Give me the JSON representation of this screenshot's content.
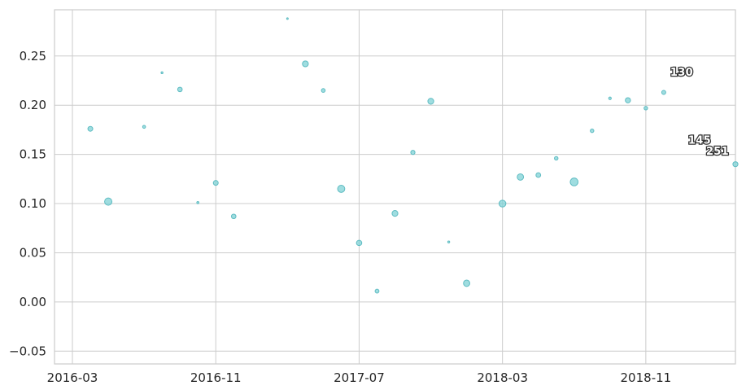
{
  "chart_data": {
    "type": "scatter",
    "title": "",
    "xlabel": "",
    "ylabel": "",
    "x_axis": {
      "type": "date",
      "range": [
        "2016-02",
        "2019-04"
      ],
      "ticks": [
        "2016-03",
        "2016-11",
        "2017-07",
        "2018-03",
        "2018-11"
      ],
      "tick_labels": [
        "2016-03",
        "2016-11",
        "2017-07",
        "2018-03",
        "2018-11"
      ]
    },
    "y_axis": {
      "range": [
        -0.063,
        0.297
      ],
      "ticks": [
        -0.05,
        0.0,
        0.05,
        0.1,
        0.15,
        0.2,
        0.25
      ],
      "tick_labels": [
        "−0.05",
        "0.00",
        "0.05",
        "0.10",
        "0.15",
        "0.20",
        "0.25"
      ]
    },
    "grid": true,
    "marker_color": "#7fd1d6",
    "points": [
      {
        "x": "2016-04-01",
        "y": 0.176,
        "size": 3
      },
      {
        "x": "2016-05-01",
        "y": 0.102,
        "size": 4.5
      },
      {
        "x": "2016-07-01",
        "y": 0.178,
        "size": 1.8
      },
      {
        "x": "2016-08-01",
        "y": 0.233,
        "size": 1.2
      },
      {
        "x": "2016-09-01",
        "y": 0.216,
        "size": 2.8
      },
      {
        "x": "2016-10-01",
        "y": 0.101,
        "size": 1.3
      },
      {
        "x": "2016-11-01",
        "y": 0.121,
        "size": 3
      },
      {
        "x": "2016-12-01",
        "y": 0.087,
        "size": 2.8
      },
      {
        "x": "2017-03-01",
        "y": 0.288,
        "size": 1
      },
      {
        "x": "2017-04-01",
        "y": 0.242,
        "size": 3.6
      },
      {
        "x": "2017-05-01",
        "y": 0.215,
        "size": 2.3
      },
      {
        "x": "2017-06-01",
        "y": 0.115,
        "size": 4.4
      },
      {
        "x": "2017-07-01",
        "y": 0.06,
        "size": 3.3
      },
      {
        "x": "2017-08-01",
        "y": 0.011,
        "size": 2.4
      },
      {
        "x": "2017-09-01",
        "y": 0.09,
        "size": 3.6
      },
      {
        "x": "2017-10-01",
        "y": 0.152,
        "size": 2.6
      },
      {
        "x": "2017-11-01",
        "y": 0.204,
        "size": 3.6
      },
      {
        "x": "2017-12-01",
        "y": 0.061,
        "size": 1.2
      },
      {
        "x": "2018-01-01",
        "y": 0.019,
        "size": 3.9
      },
      {
        "x": "2018-03-01",
        "y": 0.1,
        "size": 4.2
      },
      {
        "x": "2018-04-01",
        "y": 0.127,
        "size": 3.9
      },
      {
        "x": "2018-05-01",
        "y": 0.129,
        "size": 2.9
      },
      {
        "x": "2018-06-01",
        "y": 0.146,
        "size": 2.2
      },
      {
        "x": "2018-07-01",
        "y": 0.122,
        "size": 4.8
      },
      {
        "x": "2018-08-01",
        "y": 0.174,
        "size": 2.2
      },
      {
        "x": "2018-09-01",
        "y": 0.207,
        "size": 1.6
      },
      {
        "x": "2018-10-01",
        "y": 0.205,
        "size": 3.2
      },
      {
        "x": "2018-11-01",
        "y": 0.197,
        "size": 2.2
      },
      {
        "x": "2018-12-01",
        "y": 0.213,
        "size": 2.5
      },
      {
        "x": "2019-04-01",
        "y": 0.14,
        "size": 3.1
      }
    ],
    "annotations": [
      {
        "text": "130",
        "x": "2019-01-01",
        "y": 0.234
      },
      {
        "text": "145",
        "x": "2019-02-01",
        "y": 0.165
      },
      {
        "text": "251",
        "x": "2019-03-01",
        "y": 0.154
      }
    ]
  }
}
